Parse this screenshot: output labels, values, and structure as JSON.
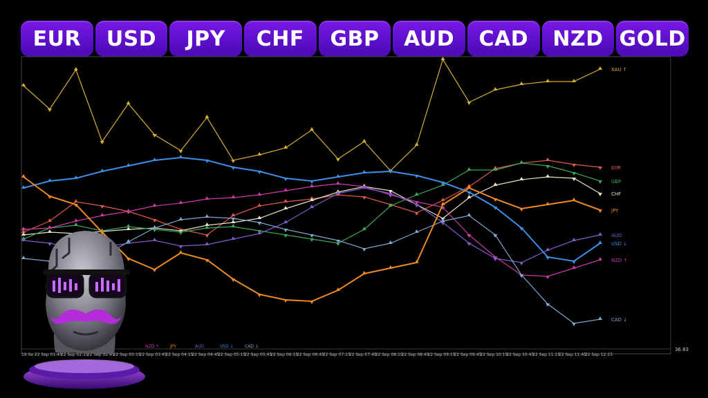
{
  "tabs": [
    "EUR",
    "USD",
    "JPY",
    "CHF",
    "GBP",
    "AUD",
    "CAD",
    "NZD",
    "GOLD"
  ],
  "chart_data": {
    "type": "line",
    "grid": false,
    "right_axis_label": "36.83",
    "first_x_label": "19 Se",
    "x": [
      "19 Se",
      "22 Sep 01:45",
      "22 Sep 02:15",
      "22 Sep 02:45",
      "22 Sep 03:15",
      "22 Sep 03:45",
      "22 Sep 04:15",
      "22 Sep 04:45",
      "22 Sep 05:15",
      "22 Sep 05:45",
      "22 Sep 06:15",
      "22 Sep 06:45",
      "22 Sep 07:15",
      "22 Sep 07:45",
      "22 Sep 08:15",
      "22 Sep 08:45",
      "22 Sep 09:15",
      "22 Sep 09:45",
      "22 Sep 10:15",
      "22 Sep 10:45",
      "22 Sep 11:15",
      "22 Sep 11:45",
      "22 Sep 12:15"
    ],
    "bottom_legend": [
      "NZD ↑",
      "JPY",
      "AUD",
      "USD ↓",
      "CAD ↓"
    ],
    "series": [
      {
        "name": "XAU ↑",
        "color": "#d8b030",
        "values": [
          124,
          158,
          101,
          205,
          150,
          195,
          218,
          170,
          232,
          224,
          214,
          188,
          230,
          205,
          247,
          210,
          86,
          148,
          130,
          122,
          118,
          118,
          100
        ]
      },
      {
        "name": "EUR",
        "color": "#e05a4a",
        "values": [
          336,
          320,
          292,
          298,
          306,
          318,
          332,
          340,
          312,
          298,
          292,
          288,
          282,
          285,
          296,
          308,
          290,
          270,
          244,
          236,
          232,
          238,
          242
        ]
      },
      {
        "name": "CHF",
        "color": "#e8e2c8",
        "values": [
          340,
          336,
          338,
          335,
          332,
          330,
          334,
          326,
          322,
          316,
          302,
          290,
          278,
          270,
          276,
          296,
          316,
          286,
          268,
          260,
          256,
          258,
          280
        ]
      },
      {
        "name": "GBP",
        "color": "#3aaa55",
        "values": [
          346,
          330,
          326,
          334,
          328,
          332,
          336,
          330,
          328,
          334,
          340,
          346,
          352,
          332,
          298,
          282,
          268,
          246,
          246,
          236,
          240,
          250,
          262
        ]
      },
      {
        "name": "NZD ↑",
        "color": "#cc3aaa",
        "values": [
          332,
          330,
          320,
          312,
          306,
          298,
          294,
          288,
          286,
          282,
          276,
          270,
          266,
          270,
          282,
          292,
          300,
          340,
          372,
          398,
          400,
          388,
          376
        ]
      },
      {
        "name": "AUD",
        "color": "#7f5ccc",
        "values": [
          348,
          352,
          360,
          358,
          352,
          348,
          356,
          354,
          346,
          338,
          322,
          300,
          280,
          272,
          280,
          296,
          322,
          352,
          374,
          380,
          362,
          348,
          340
        ]
      },
      {
        "name": "USD ↓",
        "color": "#3d8ee8",
        "values": [
          272,
          262,
          258,
          248,
          240,
          232,
          228,
          232,
          242,
          248,
          258,
          262,
          256,
          250,
          248,
          254,
          264,
          278,
          300,
          330,
          372,
          378,
          352
        ]
      },
      {
        "name": "CAD ↓",
        "color": "#7fa8d0",
        "values": [
          374,
          378,
          384,
          372,
          350,
          330,
          318,
          314,
          316,
          322,
          332,
          340,
          348,
          360,
          352,
          336,
          320,
          312,
          340,
          398,
          440,
          468,
          462
        ]
      },
      {
        "name": "JPY",
        "color": "#ef8a22",
        "values": [
          256,
          284,
          296,
          336,
          374,
          390,
          366,
          376,
          404,
          426,
          434,
          436,
          420,
          396,
          388,
          380,
          296,
          272,
          288,
          302,
          296,
          290,
          304
        ]
      }
    ]
  }
}
